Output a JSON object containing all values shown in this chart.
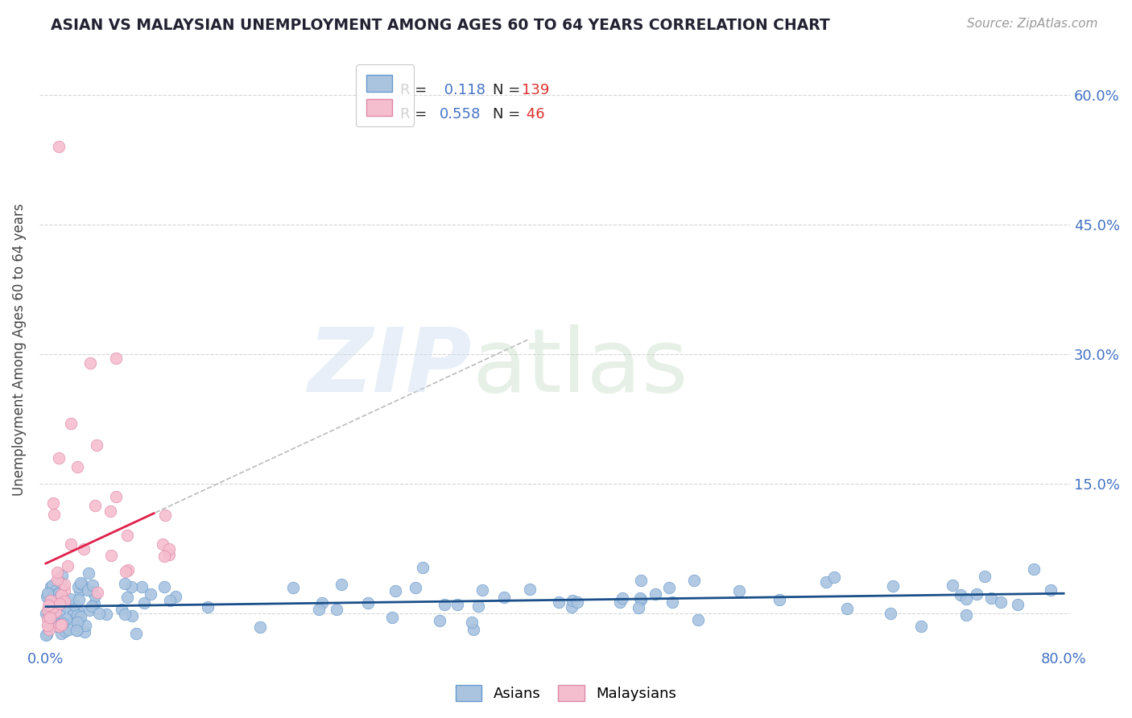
{
  "title": "ASIAN VS MALAYSIAN UNEMPLOYMENT AMONG AGES 60 TO 64 YEARS CORRELATION CHART",
  "source": "Source: ZipAtlas.com",
  "ylabel": "Unemployment Among Ages 60 to 64 years",
  "xlim": [
    -0.005,
    0.805
  ],
  "ylim": [
    -0.04,
    0.65
  ],
  "ytick_positions": [
    0.0,
    0.15,
    0.3,
    0.45,
    0.6
  ],
  "ytick_labels": [
    "",
    "15.0%",
    "30.0%",
    "45.0%",
    "60.0%"
  ],
  "asian_R": 0.118,
  "asian_N": 139,
  "malaysian_R": 0.558,
  "malaysian_N": 46,
  "asian_color": "#aac4e0",
  "asian_edge_color": "#6699cc",
  "asian_line_color": "#1a4f8a",
  "malaysian_color": "#f5bece",
  "malaysian_edge_color": "#dd88aa",
  "malaysian_line_color": "#e0204a",
  "malaysian_dash_color": "#cccccc",
  "background_color": "#ffffff",
  "grid_color": "#cccccc",
  "title_color": "#222233",
  "axis_tick_color": "#4472c4",
  "legend_R_color": "#000000",
  "legend_val_color": "#4472c4",
  "legend_N_color": "#ff0000",
  "source_color": "#999999"
}
